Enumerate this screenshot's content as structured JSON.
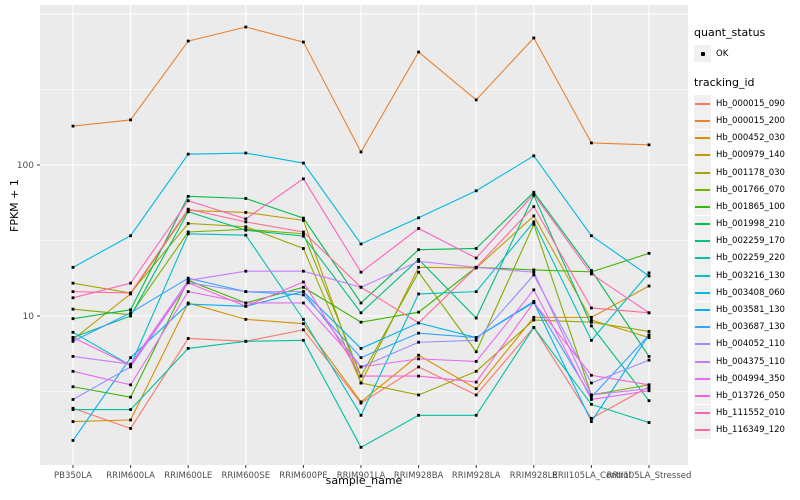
{
  "chart_data": {
    "type": "line",
    "title": "",
    "xlabel": "sample_name",
    "ylabel": "FPKM + 1",
    "y_scale": "log10",
    "y_ticks": [
      10,
      100
    ],
    "y_minor": [
      3.162,
      31.62,
      316.2
    ],
    "y_major_unlabeled": [
      1000
    ],
    "ylim_log": [
      1.03,
      1150
    ],
    "grid": true,
    "legend_position": "right",
    "categories": [
      "PB350LA",
      "RRIM600LA",
      "RRIM600LE",
      "RRIM600SE",
      "RRIM600PE",
      "RRIM901LA",
      "RRIM928BA",
      "RRIM928LA",
      "RRIM928LE",
      "RRII105LA_Control",
      "RRII105LA_Stressed"
    ],
    "series": [
      {
        "name": "Hb_000015_090",
        "color": "#F8766D",
        "values": [
          2.45,
          1.8,
          7.1,
          6.8,
          8.1,
          2.65,
          4.6,
          3.0,
          8.4,
          2.1,
          3.4
        ]
      },
      {
        "name": "Hb_000015_200",
        "color": "#EA8331",
        "values": [
          181,
          199,
          662,
          820,
          652,
          122,
          560,
          270,
          694,
          140,
          136
        ]
      },
      {
        "name": "Hb_000452_030",
        "color": "#D89000",
        "values": [
          2.0,
          2.05,
          12.2,
          9.5,
          8.9,
          2.7,
          5.5,
          3.3,
          9.8,
          9.8,
          15.8
        ]
      },
      {
        "name": "Hb_000979_140",
        "color": "#C09B00",
        "values": [
          7.0,
          14.0,
          50,
          48.5,
          43,
          3.6,
          21,
          20.8,
          46,
          9.4,
          7.2
        ]
      },
      {
        "name": "Hb_001178_030",
        "color": "#A3A500",
        "values": [
          16.5,
          14.2,
          41,
          39,
          28,
          3.6,
          3.0,
          4.3,
          9.4,
          9.1,
          7.9
        ]
      },
      {
        "name": "Hb_001766_070",
        "color": "#7CAE00",
        "values": [
          11.1,
          10.2,
          36,
          37.5,
          35,
          4.0,
          19.5,
          5.8,
          40.5,
          3.0,
          3.5
        ]
      },
      {
        "name": "Hb_001865_100",
        "color": "#39B600",
        "values": [
          3.4,
          2.9,
          17.2,
          12.2,
          15.5,
          9.1,
          10.6,
          21,
          20.2,
          19.6,
          26
        ]
      },
      {
        "name": "Hb_001998_210",
        "color": "#00BB4E",
        "values": [
          9.6,
          11.0,
          62,
          60,
          44.5,
          12.2,
          27.5,
          28,
          66,
          20,
          5.4
        ]
      },
      {
        "name": "Hb_002259_170",
        "color": "#00BF7D",
        "values": [
          7.2,
          10.0,
          49,
          37,
          33.8,
          10.5,
          23.7,
          9.7,
          63,
          8.6,
          2.75
        ]
      },
      {
        "name": "Hb_002259_220",
        "color": "#00C1A3",
        "values": [
          2.4,
          2.4,
          6.1,
          6.8,
          6.9,
          1.35,
          2.2,
          2.2,
          8.4,
          2.6,
          1.97
        ]
      },
      {
        "name": "Hb_003216_130",
        "color": "#00BFC4",
        "values": [
          7.8,
          4.7,
          35,
          34.3,
          9.5,
          2.2,
          14,
          14.5,
          42,
          6.9,
          19.3
        ]
      },
      {
        "name": "Hb_003408_060",
        "color": "#00BAE0",
        "values": [
          21,
          34,
          118,
          120,
          103,
          30,
          44.7,
          67.5,
          115,
          34,
          18.4
        ]
      },
      {
        "name": "Hb_003581_130",
        "color": "#00B0F6",
        "values": [
          1.5,
          5.3,
          12.0,
          11.6,
          14.5,
          6.1,
          9.0,
          7.2,
          12.3,
          2.0,
          7.5
        ]
      },
      {
        "name": "Hb_003687_130",
        "color": "#35A2FF",
        "values": [
          6.8,
          10.5,
          17.8,
          14.5,
          13.8,
          5.3,
          7.7,
          7.2,
          12.5,
          2.9,
          7.5
        ]
      },
      {
        "name": "Hb_004052_110",
        "color": "#9590FF",
        "values": [
          2.8,
          4.6,
          16.6,
          14.5,
          14.5,
          4.6,
          6.7,
          6.9,
          18.7,
          3.6,
          5.1
        ]
      },
      {
        "name": "Hb_004375_110",
        "color": "#C77CFF",
        "values": [
          5.4,
          4.8,
          17.2,
          19.8,
          19.8,
          15.5,
          23,
          21,
          19.5,
          3.0,
          3.3
        ]
      },
      {
        "name": "Hb_004994_350",
        "color": "#E76BF3",
        "values": [
          4.3,
          3.5,
          14.5,
          12.2,
          12.2,
          4.6,
          5.2,
          5.0,
          14.9,
          2.8,
          3.2
        ]
      },
      {
        "name": "Hb_013726_050",
        "color": "#FA62DB",
        "values": [
          7.2,
          4.7,
          16.6,
          11.6,
          16.8,
          4.0,
          4.0,
          3.65,
          12.3,
          4.05,
          3.5
        ]
      },
      {
        "name": "Hb_111552_010",
        "color": "#FF62BC",
        "values": [
          13.2,
          16.5,
          58,
          44,
          81,
          19.5,
          38,
          24.2,
          64,
          19.0,
          10.5
        ]
      },
      {
        "name": "Hb_116349_120",
        "color": "#FF6A98",
        "values": [
          14.5,
          14.2,
          51,
          42,
          36,
          15.5,
          9.0,
          21,
          53,
          11.3,
          10.5
        ]
      }
    ]
  },
  "legend": {
    "quant_title": "quant_status",
    "quant_ok_label": "OK",
    "tracking_title": "tracking_id"
  },
  "axes": {
    "y_tick_labels": [
      "100",
      "10"
    ],
    "x_label": "sample_name",
    "y_label": "FPKM + 1"
  },
  "style_colors": {
    "panel_bg": "#EBEBEB",
    "grid_major": "#FFFFFF",
    "grid_minor": "#F7F7F7",
    "axis_text": "#4D4D4D",
    "point": "#000000"
  }
}
